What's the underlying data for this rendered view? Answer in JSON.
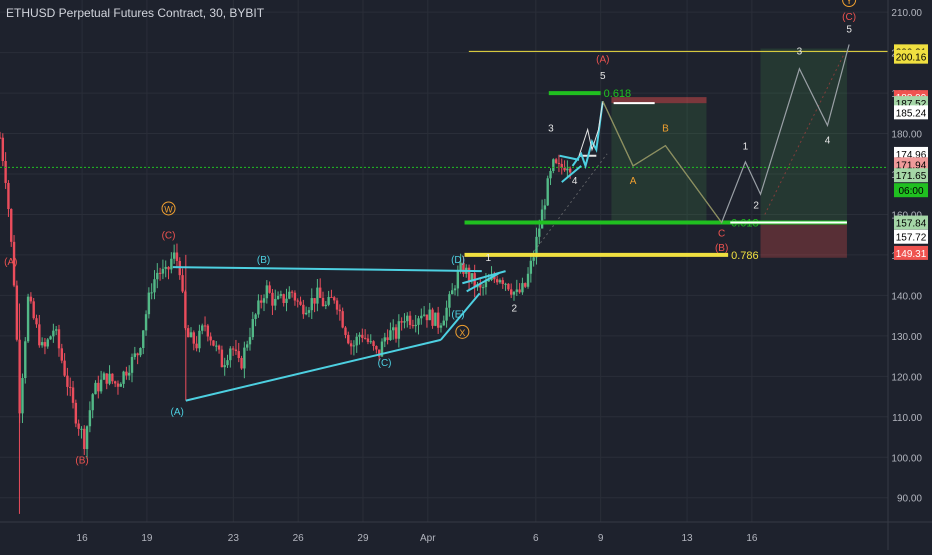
{
  "header": {
    "symbol_title": "ETHUSD Perpetual Futures Contract, 30, BYBIT"
  },
  "colors": {
    "background": "#1e222d",
    "grid": "#2a2e39",
    "axis_text": "#b2b5be",
    "candle_up": "#53b987",
    "candle_down": "#eb4d5c",
    "cyan": "#4dd0e1",
    "green_level": "#20c020",
    "yellow_level": "#f0e040",
    "orange_label": "#f0a030",
    "red_label": "#ef5350",
    "white": "#e6e6e6",
    "grey_proj": "#9aa0a6"
  },
  "chart_data": {
    "type": "candlestick",
    "title": "ETHUSD Perpetual Futures Contract, 30, BYBIT",
    "ylim": [
      84,
      213
    ],
    "y_ticks": [
      90,
      100,
      110,
      120,
      130,
      140,
      150,
      160,
      170,
      180,
      190,
      200,
      210
    ],
    "y_tick_labels": [
      "90.00",
      "100.00",
      "110.00",
      "120.00",
      "130.00",
      "140.00",
      "150.00",
      "160.00",
      "170.00",
      "180.00",
      "190.00",
      "200.00",
      "210.00"
    ],
    "x_ticks": [
      {
        "day": 16,
        "label": "16"
      },
      {
        "day": 19,
        "label": "19"
      },
      {
        "day": 23,
        "label": "23"
      },
      {
        "day": 26,
        "label": "26"
      },
      {
        "day": 29,
        "label": "29"
      },
      {
        "day": 32,
        "label": "Apr"
      },
      {
        "day": 37,
        "label": "6"
      },
      {
        "day": 40,
        "label": "9"
      },
      {
        "day": 44,
        "label": "13"
      },
      {
        "day": 47,
        "label": "16"
      }
    ],
    "x_range_days": [
      12.2,
      53.3
    ],
    "price_path": [
      [
        12.2,
        179
      ],
      [
        12.5,
        168
      ],
      [
        12.9,
        140
      ],
      [
        13.1,
        112
      ],
      [
        13.3,
        125
      ],
      [
        13.5,
        139
      ],
      [
        14.2,
        126
      ],
      [
        14.7,
        132
      ],
      [
        15.2,
        121
      ],
      [
        15.6,
        112
      ],
      [
        16.1,
        104
      ],
      [
        16.5,
        116
      ],
      [
        17.1,
        120
      ],
      [
        17.6,
        118
      ],
      [
        18.2,
        123
      ],
      [
        18.6,
        126
      ],
      [
        18.9,
        134
      ],
      [
        19.2,
        142
      ],
      [
        19.5,
        146
      ],
      [
        19.9,
        145
      ],
      [
        20.2,
        150
      ],
      [
        20.5,
        148
      ],
      [
        20.8,
        130
      ],
      [
        21.3,
        128
      ],
      [
        21.7,
        133
      ],
      [
        22.1,
        128
      ],
      [
        22.5,
        123
      ],
      [
        22.9,
        128
      ],
      [
        23.3,
        122
      ],
      [
        23.7,
        130
      ],
      [
        24.1,
        136
      ],
      [
        24.5,
        142
      ],
      [
        24.9,
        138
      ],
      [
        25.3,
        139
      ],
      [
        25.7,
        141
      ],
      [
        26.1,
        137
      ],
      [
        26.5,
        138
      ],
      [
        26.9,
        140
      ],
      [
        27.3,
        137
      ],
      [
        27.7,
        140
      ],
      [
        28.1,
        133
      ],
      [
        28.5,
        127
      ],
      [
        28.9,
        131
      ],
      [
        29.3,
        128
      ],
      [
        29.7,
        125
      ],
      [
        30.1,
        131
      ],
      [
        30.5,
        130
      ],
      [
        30.9,
        135
      ],
      [
        31.3,
        134
      ],
      [
        31.7,
        136
      ],
      [
        32.1,
        135
      ],
      [
        32.5,
        133
      ],
      [
        32.9,
        137
      ],
      [
        33.1,
        140
      ],
      [
        33.3,
        144
      ],
      [
        33.6,
        147
      ],
      [
        34.0,
        144
      ],
      [
        34.4,
        141
      ],
      [
        34.8,
        143
      ],
      [
        35.3,
        145
      ],
      [
        35.7,
        143
      ],
      [
        36.1,
        140
      ],
      [
        36.5,
        142
      ],
      [
        36.9,
        150
      ],
      [
        37.2,
        158
      ],
      [
        37.5,
        166
      ],
      [
        37.8,
        172
      ],
      [
        38.1,
        171
      ],
      [
        38.4,
        173
      ],
      [
        38.7,
        172
      ]
    ],
    "annotations": {
      "horizontal_lines": [
        {
          "name": "top-line",
          "price": 200.31,
          "from_day": 33.9,
          "to_day": 53.3,
          "color": "#f0e040",
          "width": 1
        },
        {
          "name": "dotted-current",
          "price": 171.65,
          "from_day": 12.2,
          "to_day": 53.3,
          "color": "#20c020",
          "width": 1,
          "dash": true
        }
      ],
      "levels": [
        {
          "name": "fib-0618-top",
          "price": 190.0,
          "from_day": 37.6,
          "to_day": 40.0,
          "color": "#20c020",
          "width": 4,
          "label": "0.618"
        },
        {
          "name": "fib-0618-mid",
          "price": 158.0,
          "from_day": 33.7,
          "to_day": 51.4,
          "color": "#20c020",
          "width": 4,
          "label": "0.618"
        },
        {
          "name": "fib-0786",
          "price": 150.0,
          "from_day": 33.7,
          "to_day": 45.9,
          "color": "#f0e040",
          "width": 4,
          "label": "0.786"
        }
      ],
      "zones": [
        {
          "name": "green-box",
          "from_day": 47.4,
          "to_day": 51.4,
          "price_top": 201,
          "price_bottom": 158,
          "color": "rgba(76,175,80,0.16)"
        },
        {
          "name": "red-box-bottom",
          "from_day": 47.4,
          "to_day": 51.4,
          "price_top": 158,
          "price_bottom": 149.3,
          "color": "rgba(239,83,80,0.28)"
        },
        {
          "name": "green-box-2",
          "from_day": 40.5,
          "to_day": 44.9,
          "price_top": 187.5,
          "price_bottom": 158,
          "color": "rgba(76,175,80,0.16)"
        },
        {
          "name": "red-box-top",
          "from_day": 40.5,
          "to_day": 44.9,
          "price_top": 189,
          "price_bottom": 187.5,
          "color": "rgba(239,83,80,0.45)"
        }
      ],
      "trendlines": [
        {
          "name": "triangle-upper",
          "points": [
            [
              20.2,
              147
            ],
            [
              34.5,
              146
            ]
          ],
          "color": "#4dd0e1",
          "width": 2
        },
        {
          "name": "triangle-lower",
          "points": [
            [
              20.8,
              114
            ],
            [
              32.6,
              129
            ]
          ],
          "color": "#4dd0e1",
          "width": 2
        },
        {
          "name": "wedge-x-e",
          "points": [
            [
              32.6,
              129
            ],
            [
              34.4,
              140.5
            ]
          ],
          "color": "#4dd0e1",
          "width": 2
        },
        {
          "name": "flag-upper",
          "points": [
            [
              33.6,
              143
            ],
            [
              35.6,
              146
            ]
          ],
          "color": "#4dd0e1",
          "width": 2
        },
        {
          "name": "flag-lower",
          "points": [
            [
              33.8,
              141
            ],
            [
              35.3,
              145.5
            ]
          ],
          "color": "#4dd0e1",
          "width": 2
        },
        {
          "name": "pennant-upper",
          "points": [
            [
              38.1,
              174.5
            ],
            [
              39.0,
              173.5
            ]
          ],
          "color": "#4dd0e1",
          "width": 2
        },
        {
          "name": "pennant-lower",
          "points": [
            [
              38.2,
              168
            ],
            [
              39.1,
              172
            ]
          ],
          "color": "#4dd0e1",
          "width": 2
        },
        {
          "name": "pennant-white-top",
          "points": [
            [
              39.0,
              174.5
            ],
            [
              39.8,
              174.5
            ]
          ],
          "color": "#e6e6e6",
          "width": 2
        },
        {
          "name": "proj-wave-5",
          "points": [
            [
              38.7,
              172
            ],
            [
              39.1,
              175
            ],
            [
              39.3,
              172
            ],
            [
              39.6,
              178
            ],
            [
              39.8,
              176
            ],
            [
              40.1,
              188
            ]
          ],
          "color": "#4dd0e1",
          "width": 2
        },
        {
          "name": "proj-abc-small",
          "points": [
            [
              39.0,
              174.5
            ],
            [
              39.4,
              181
            ],
            [
              39.6,
              176
            ],
            [
              39.9,
              181
            ],
            [
              40.1,
              188
            ]
          ],
          "color": "#e6e6e6",
          "width": 1
        }
      ],
      "projection_path": [
        [
          40.1,
          188
        ],
        [
          41.5,
          172
        ],
        [
          43.0,
          177
        ],
        [
          45.6,
          158
        ],
        [
          46.7,
          173
        ],
        [
          47.4,
          165
        ],
        [
          49.2,
          196
        ],
        [
          50.5,
          182
        ],
        [
          51.5,
          202
        ]
      ],
      "projection_path2": [
        [
          40.1,
          188
        ],
        [
          42.0,
          160
        ],
        [
          45.9,
          158
        ]
      ],
      "labels": [
        {
          "name": "label-A-red-left",
          "text": "(A)",
          "day": 12.7,
          "price": 147.5,
          "color": "#ef5350"
        },
        {
          "name": "label-B-red-bottom",
          "text": "(B)",
          "day": 16.0,
          "price": 98.5,
          "color": "#ef5350"
        },
        {
          "name": "label-C-red",
          "text": "(C)",
          "day": 20.0,
          "price": 154.0,
          "color": "#ef5350"
        },
        {
          "name": "label-W",
          "text": "W",
          "day": 20.0,
          "price": 160.5,
          "color": "#f0a030",
          "circle": true
        },
        {
          "name": "label-B-cyan",
          "text": "(B)",
          "day": 24.4,
          "price": 148.0,
          "color": "#4dd0e1"
        },
        {
          "name": "label-A-cyan",
          "text": "(A)",
          "day": 20.4,
          "price": 110.5,
          "color": "#4dd0e1"
        },
        {
          "name": "label-C-cyan",
          "text": "(C)",
          "day": 30.0,
          "price": 122.5,
          "color": "#4dd0e1"
        },
        {
          "name": "label-D-cyan",
          "text": "(D)",
          "day": 33.4,
          "price": 148.0,
          "color": "#4dd0e1"
        },
        {
          "name": "label-E-cyan",
          "text": "(E)",
          "day": 33.4,
          "price": 134.5,
          "color": "#4dd0e1"
        },
        {
          "name": "label-X",
          "text": "X",
          "day": 33.6,
          "price": 130.0,
          "color": "#f0a030",
          "circle": true
        },
        {
          "name": "label-1",
          "text": "1",
          "day": 34.8,
          "price": 148.5,
          "color": "#e6e6e6"
        },
        {
          "name": "label-2",
          "text": "2",
          "day": 36.0,
          "price": 136.0,
          "color": "#e6e6e6"
        },
        {
          "name": "label-3",
          "text": "3",
          "day": 37.7,
          "price": 180.5,
          "color": "#e6e6e6"
        },
        {
          "name": "label-4",
          "text": "4",
          "day": 38.8,
          "price": 167.5,
          "color": "#e6e6e6"
        },
        {
          "name": "label-5",
          "text": "5",
          "day": 40.1,
          "price": 193.5,
          "color": "#e6e6e6"
        },
        {
          "name": "label-A-red-top",
          "text": "(A)",
          "day": 40.1,
          "price": 197.5,
          "color": "#ef5350"
        },
        {
          "name": "label-A-orange",
          "text": "A",
          "day": 41.5,
          "price": 167.5,
          "color": "#f0a030"
        },
        {
          "name": "label-B-orange",
          "text": "B",
          "day": 43.0,
          "price": 180.5,
          "color": "#f0a030"
        },
        {
          "name": "label-C-red-proj",
          "text": "C",
          "day": 45.6,
          "price": 154.5,
          "color": "#ef5350"
        },
        {
          "name": "label-B-red-proj",
          "text": "(B)",
          "day": 45.6,
          "price": 151.0,
          "color": "#ef5350"
        },
        {
          "name": "label-1-proj",
          "text": "1",
          "day": 46.7,
          "price": 176.0,
          "color": "#e6e6e6"
        },
        {
          "name": "label-2-proj",
          "text": "2",
          "day": 47.2,
          "price": 161.5,
          "color": "#e6e6e6"
        },
        {
          "name": "label-3-proj",
          "text": "3",
          "day": 49.2,
          "price": 199.5,
          "color": "#e6e6e6"
        },
        {
          "name": "label-4-proj",
          "text": "4",
          "day": 50.5,
          "price": 177.5,
          "color": "#e6e6e6"
        },
        {
          "name": "label-5-proj",
          "text": "5",
          "day": 51.5,
          "price": 205.0,
          "color": "#e6e6e6"
        },
        {
          "name": "label-C-red-top",
          "text": "(C)",
          "day": 51.5,
          "price": 208.0,
          "color": "#ef5350"
        },
        {
          "name": "label-Y",
          "text": "Y",
          "day": 51.5,
          "price": 212.0,
          "color": "#f0a030",
          "circle": true
        }
      ]
    },
    "price_labels": [
      {
        "name": "price-200-31",
        "text": "200.31",
        "price": 200.31,
        "bg": "#f0e040",
        "fg": "#000000"
      },
      {
        "name": "price-200-16",
        "text": "200.16",
        "price": 199.0,
        "bg": "#f0e040",
        "fg": "#000000"
      },
      {
        "name": "price-188-99",
        "text": "188.99",
        "price": 189.0,
        "bg": "#ef5350",
        "fg": "#ffffff"
      },
      {
        "name": "price-187-52",
        "text": "187.52",
        "price": 187.52,
        "bg": "#a5d6a7",
        "fg": "#000000"
      },
      {
        "name": "price-185-24",
        "text": "185.24",
        "price": 185.24,
        "bg": "#ffffff",
        "fg": "#000000"
      },
      {
        "name": "price-174-96",
        "text": "174.96",
        "price": 174.96,
        "bg": "#ffffff",
        "fg": "#000000"
      },
      {
        "name": "price-171-94",
        "text": "171.94",
        "price": 172.4,
        "bg": "#ef9a9a",
        "fg": "#000000"
      },
      {
        "name": "price-171-65",
        "text": "171.65",
        "price": 169.7,
        "bg": "#a5d6a7",
        "fg": "#000000"
      },
      {
        "name": "price-countdown",
        "text": "06:00",
        "price": 166.0,
        "bg": "#20c020",
        "fg": "#000000"
      },
      {
        "name": "price-157-84",
        "text": "157.84",
        "price": 158.0,
        "bg": "#a5d6a7",
        "fg": "#000000"
      },
      {
        "name": "price-157-72",
        "text": "157.72",
        "price": 154.5,
        "bg": "#ffffff",
        "fg": "#000000"
      },
      {
        "name": "price-149-31",
        "text": "149.31",
        "price": 150.5,
        "bg": "#ef5350",
        "fg": "#ffffff"
      }
    ]
  }
}
